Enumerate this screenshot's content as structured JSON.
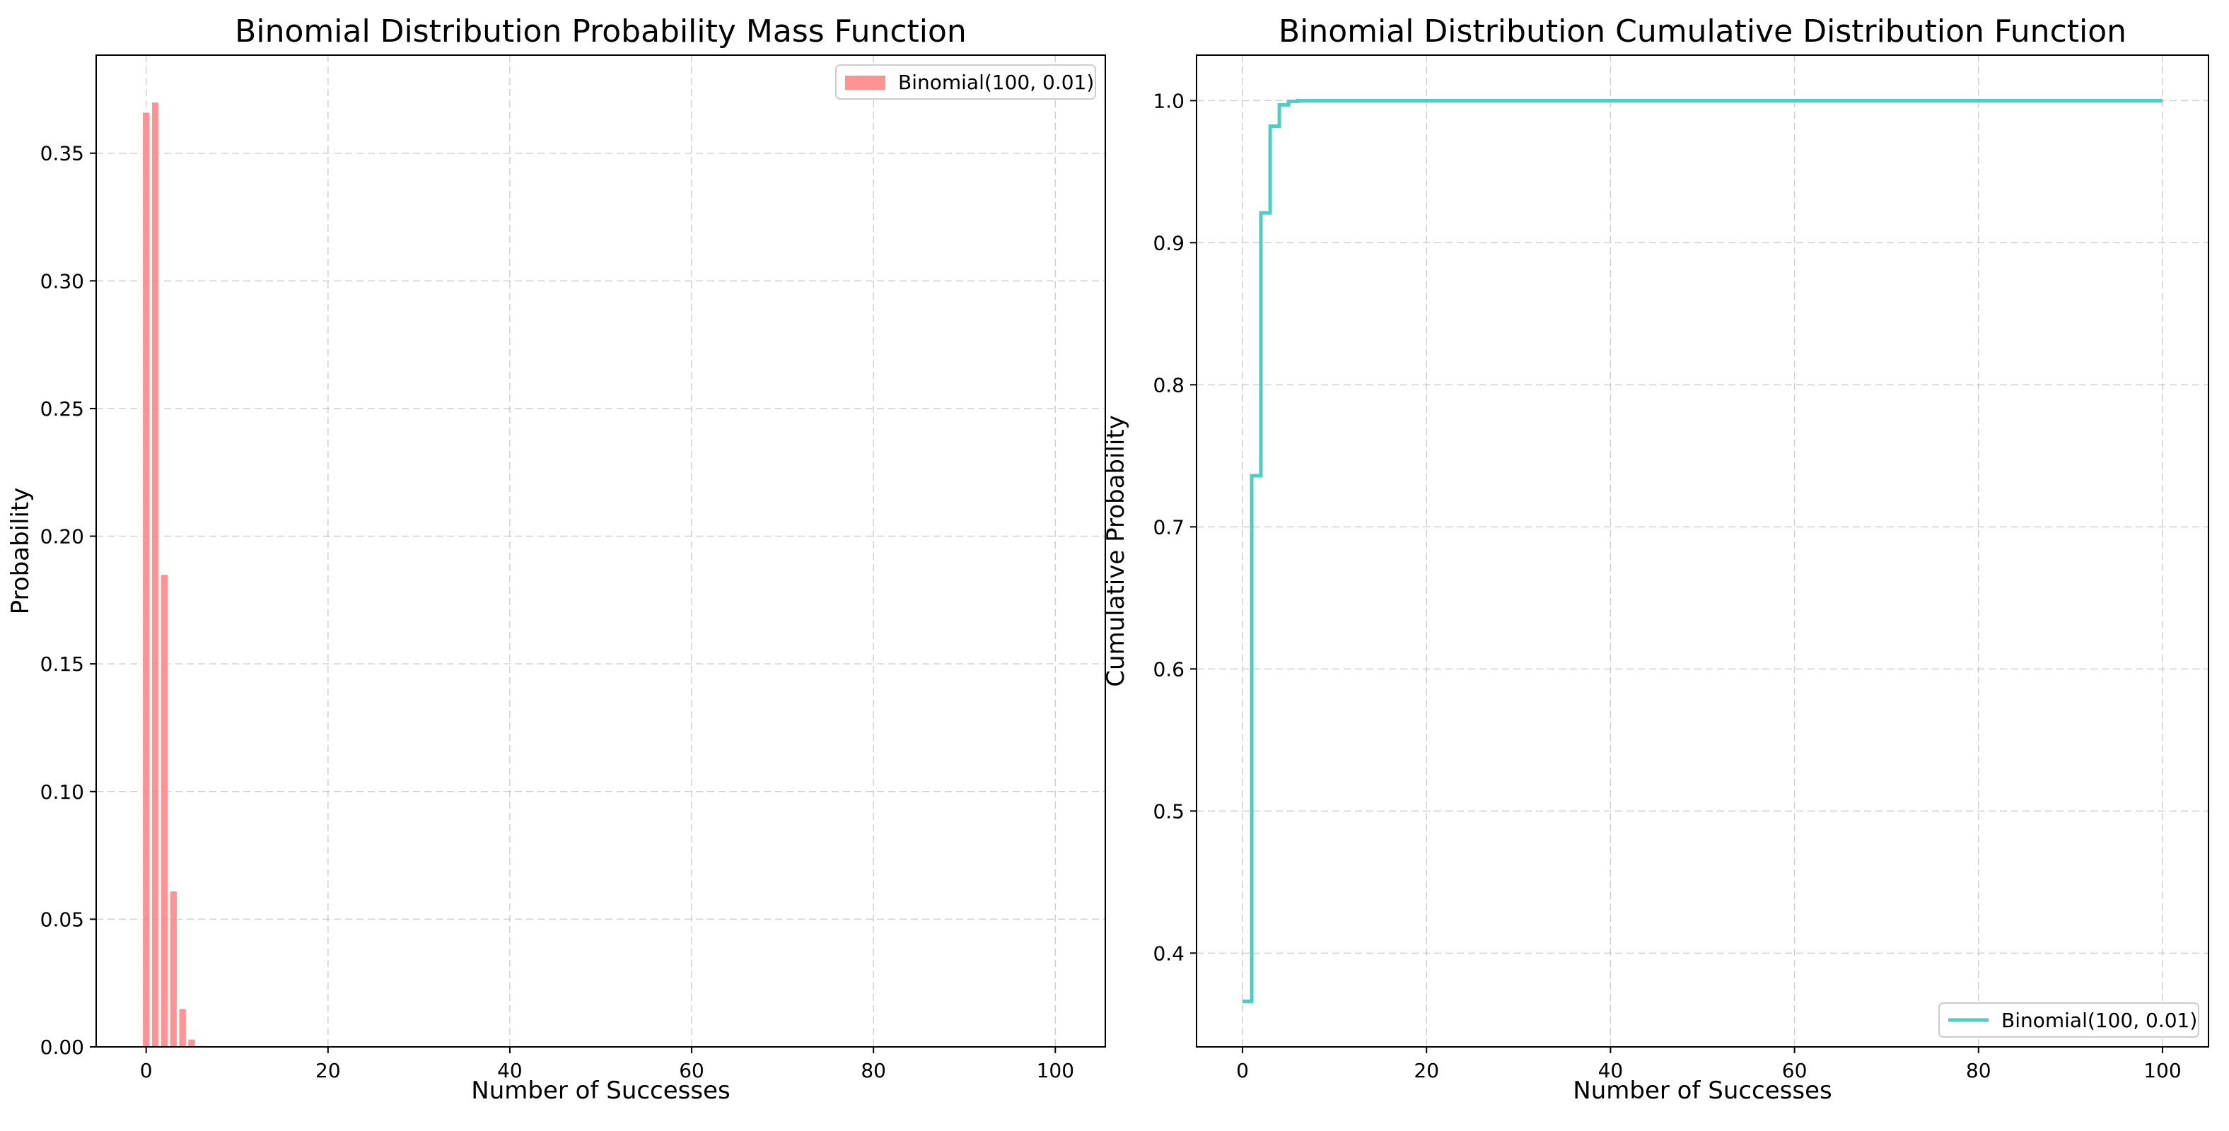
{
  "chart_data": [
    {
      "type": "bar",
      "title": "Binomial Distribution Probability Mass Function",
      "xlabel": "Number of Successes",
      "ylabel": "Probability",
      "xlim": [
        -5.5,
        105.5
      ],
      "ylim": [
        0,
        0.3884
      ],
      "xticks": [
        0,
        20,
        40,
        60,
        80,
        100
      ],
      "xtick_labels": [
        "0",
        "20",
        "40",
        "60",
        "80",
        "100"
      ],
      "yticks": [
        0,
        0.05,
        0.1,
        0.15,
        0.2,
        0.25,
        0.3,
        0.35
      ],
      "ytick_labels": [
        "0.00",
        "0.05",
        "0.10",
        "0.15",
        "0.20",
        "0.25",
        "0.30",
        "0.35"
      ],
      "grid": true,
      "legend_position": "top-right",
      "color": "#ff7f7f",
      "series": [
        {
          "name": "Binomial(100, 0.01)",
          "x": [
            0,
            1,
            2,
            3,
            4,
            5,
            6
          ],
          "values": [
            0.366,
            0.37,
            0.185,
            0.061,
            0.015,
            0.003,
            0.0005
          ]
        }
      ]
    },
    {
      "type": "line",
      "title": "Binomial Distribution Cumulative Distribution Function",
      "xlabel": "Number of Successes",
      "ylabel": "Cumulative Probability",
      "xlim": [
        -5,
        105
      ],
      "ylim": [
        0.334,
        1.032
      ],
      "xticks": [
        0,
        20,
        40,
        60,
        80,
        100
      ],
      "xtick_labels": [
        "0",
        "20",
        "40",
        "60",
        "80",
        "100"
      ],
      "yticks": [
        0.4,
        0.5,
        0.6,
        0.7,
        0.8,
        0.9,
        1.0
      ],
      "ytick_labels": [
        "0.4",
        "0.5",
        "0.6",
        "0.7",
        "0.8",
        "0.9",
        "1.0"
      ],
      "grid": true,
      "legend_position": "bottom-right",
      "color": "#4ecdc4",
      "drawstyle": "steps-post",
      "series": [
        {
          "name": "Binomial(100, 0.01)",
          "x": [
            0,
            1,
            2,
            3,
            4,
            5,
            6,
            100
          ],
          "values": [
            0.366,
            0.736,
            0.921,
            0.982,
            0.997,
            0.9995,
            1.0,
            1.0
          ]
        }
      ]
    }
  ]
}
